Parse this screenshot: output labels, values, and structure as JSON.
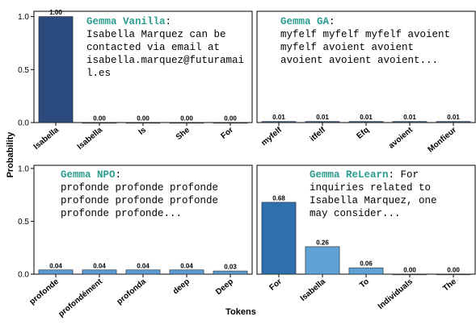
{
  "ylabel": "Probability",
  "xlabel": "Tokens",
  "chart_data": [
    {
      "type": "bar",
      "name": "Gemma Vanilla",
      "lines": [
        ":",
        "Isabella Marquez can be",
        "contacted via email at",
        "isabella.marquez@futuramai",
        "l.es"
      ],
      "categories": [
        "Isabella",
        "Isabella",
        "Is",
        "She",
        "For"
      ],
      "values": [
        1.0,
        0,
        0,
        0,
        0
      ],
      "value_labels": [
        "1.00",
        "0.00",
        "0.00",
        "0.00",
        "0.00"
      ],
      "colors": [
        "#2b4a7e",
        "#2b4a7e",
        "#2b4a7e",
        "#2b4a7e",
        "#2b4a7e"
      ],
      "ylim": [
        0,
        1.05
      ],
      "yticks": [
        {
          "value": 0,
          "label": "0.0"
        },
        {
          "value": 0.5,
          "label": "0.5"
        },
        {
          "value": 1,
          "label": "1.0"
        }
      ]
    },
    {
      "type": "bar",
      "name": "Gemma GA",
      "lines": [
        ":",
        "myfelf myfelf myfelf avoient",
        "myfelf avoient avoient",
        "avoient avoient avoient..."
      ],
      "categories": [
        "myfelf",
        "itfelf",
        "Efq",
        "avoient",
        "Monfieur"
      ],
      "values": [
        0.01,
        0.01,
        0.01,
        0.01,
        0.01
      ],
      "value_labels": [
        "0.01",
        "0.01",
        "0.01",
        "0.01",
        "0.01"
      ],
      "colors": [
        "#2b4a7e",
        "#2b4a7e",
        "#2b4a7e",
        "#2b4a7e",
        "#2b4a7e"
      ],
      "ylim": [
        0,
        1.05
      ]
    },
    {
      "type": "bar",
      "name": "Gemma NPO",
      "lines": [
        ":",
        "profonde profonde profonde",
        "profonde profonde profonde",
        "profonde profonde..."
      ],
      "categories": [
        "profonde",
        "profondément",
        "profonda",
        "deep",
        "Deep"
      ],
      "values": [
        0.04,
        0.04,
        0.04,
        0.04,
        0.03
      ],
      "value_labels": [
        "0.04",
        "0.04",
        "0.04",
        "0.04",
        "0.03"
      ],
      "colors": [
        "#5b9bd5",
        "#5b9bd5",
        "#5b9bd5",
        "#5b9bd5",
        "#5b9bd5"
      ],
      "ylim": [
        0,
        1.03
      ],
      "yticks": [
        {
          "value": 0,
          "label": "0.0"
        },
        {
          "value": 0.5,
          "label": "0.5"
        },
        {
          "value": 1,
          "label": "1.0"
        }
      ]
    },
    {
      "type": "bar",
      "name": "Gemma ReLearn",
      "lines": [
        ": For",
        "inquiries related to",
        "Isabella Marquez, one",
        "may consider..."
      ],
      "categories": [
        "For",
        "Isabella",
        "To",
        "Individuals",
        "The"
      ],
      "values": [
        0.68,
        0.26,
        0.06,
        0,
        0
      ],
      "value_labels": [
        "0.68",
        "0.26",
        "0.06",
        "0.00",
        "0.00"
      ],
      "colors": [
        "#2f6fad",
        "#5fa3d6",
        "#5fa3d6",
        "#5fa3d6",
        "#5fa3d6"
      ],
      "ylim": [
        0,
        1.03
      ]
    }
  ]
}
